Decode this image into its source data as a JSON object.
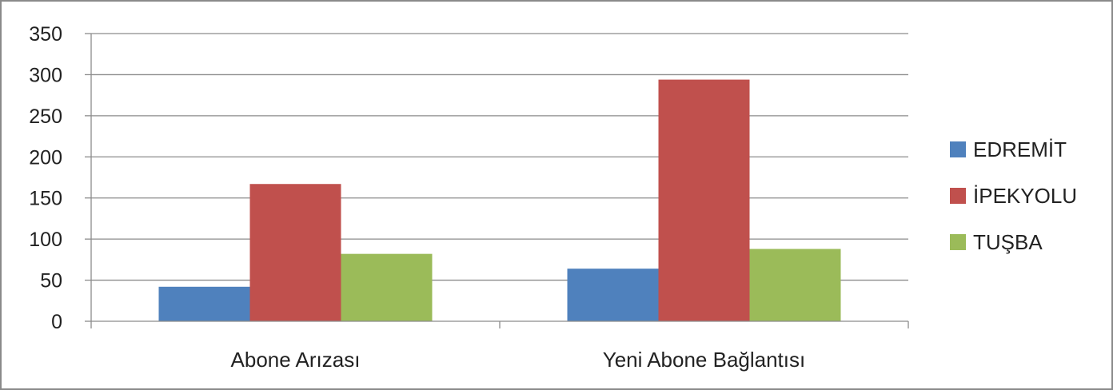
{
  "chart_data": {
    "type": "bar",
    "categories": [
      "Abone Arızası",
      "Yeni Abone Bağlantısı"
    ],
    "series": [
      {
        "name": "EDREMİT",
        "values": [
          42,
          64
        ],
        "color": "#4f81bd"
      },
      {
        "name": "İPEKYOLU",
        "values": [
          167,
          294
        ],
        "color": "#c0504d"
      },
      {
        "name": "TUŞBA",
        "values": [
          82,
          88
        ],
        "color": "#9bbb59"
      }
    ],
    "y_ticks": [
      "0",
      "50",
      "100",
      "150",
      "200",
      "250",
      "300",
      "350"
    ],
    "ylim": [
      0,
      350
    ],
    "grid": true,
    "legend_position": "right",
    "title": "",
    "xlabel": "",
    "ylabel": ""
  }
}
